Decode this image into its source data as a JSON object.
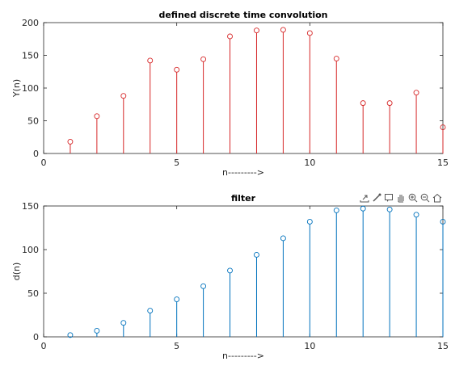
{
  "toolbar": {
    "icons": [
      "export-icon",
      "brush-icon",
      "datatip-icon",
      "pan-icon",
      "zoom-in-icon",
      "zoom-out-icon",
      "home-icon"
    ]
  },
  "colors": {
    "axis": "#262626",
    "grid_text": "#262626",
    "series_top": "#d62728",
    "series_bottom": "#0072bd"
  },
  "chart_data": [
    {
      "type": "stem",
      "title": "defined discrete time convolution",
      "xlabel": "n--------->",
      "ylabel": "Y(n)",
      "xlim": [
        0,
        15
      ],
      "ylim": [
        0,
        200
      ],
      "xticks": [
        0,
        5,
        10,
        15
      ],
      "yticks": [
        0,
        50,
        100,
        150,
        200
      ],
      "grid": false,
      "color": "#d62728",
      "x": [
        1,
        2,
        3,
        4,
        5,
        6,
        7,
        8,
        9,
        10,
        11,
        12,
        13,
        14,
        15
      ],
      "y": [
        18,
        57,
        88,
        142,
        128,
        144,
        179,
        188,
        189,
        184,
        145,
        77,
        77,
        93,
        40
      ]
    },
    {
      "type": "stem",
      "title": "filter",
      "xlabel": "n--------->",
      "ylabel": "d(n)",
      "xlim": [
        0,
        15
      ],
      "ylim": [
        0,
        150
      ],
      "xticks": [
        0,
        5,
        10,
        15
      ],
      "yticks": [
        0,
        50,
        100,
        150
      ],
      "grid": false,
      "color": "#0072bd",
      "x": [
        1,
        2,
        3,
        4,
        5,
        6,
        7,
        8,
        9,
        10,
        11,
        12,
        13,
        14,
        15
      ],
      "y": [
        2,
        7,
        16,
        30,
        43,
        58,
        76,
        94,
        113,
        132,
        145,
        147,
        146,
        140,
        132
      ]
    }
  ]
}
